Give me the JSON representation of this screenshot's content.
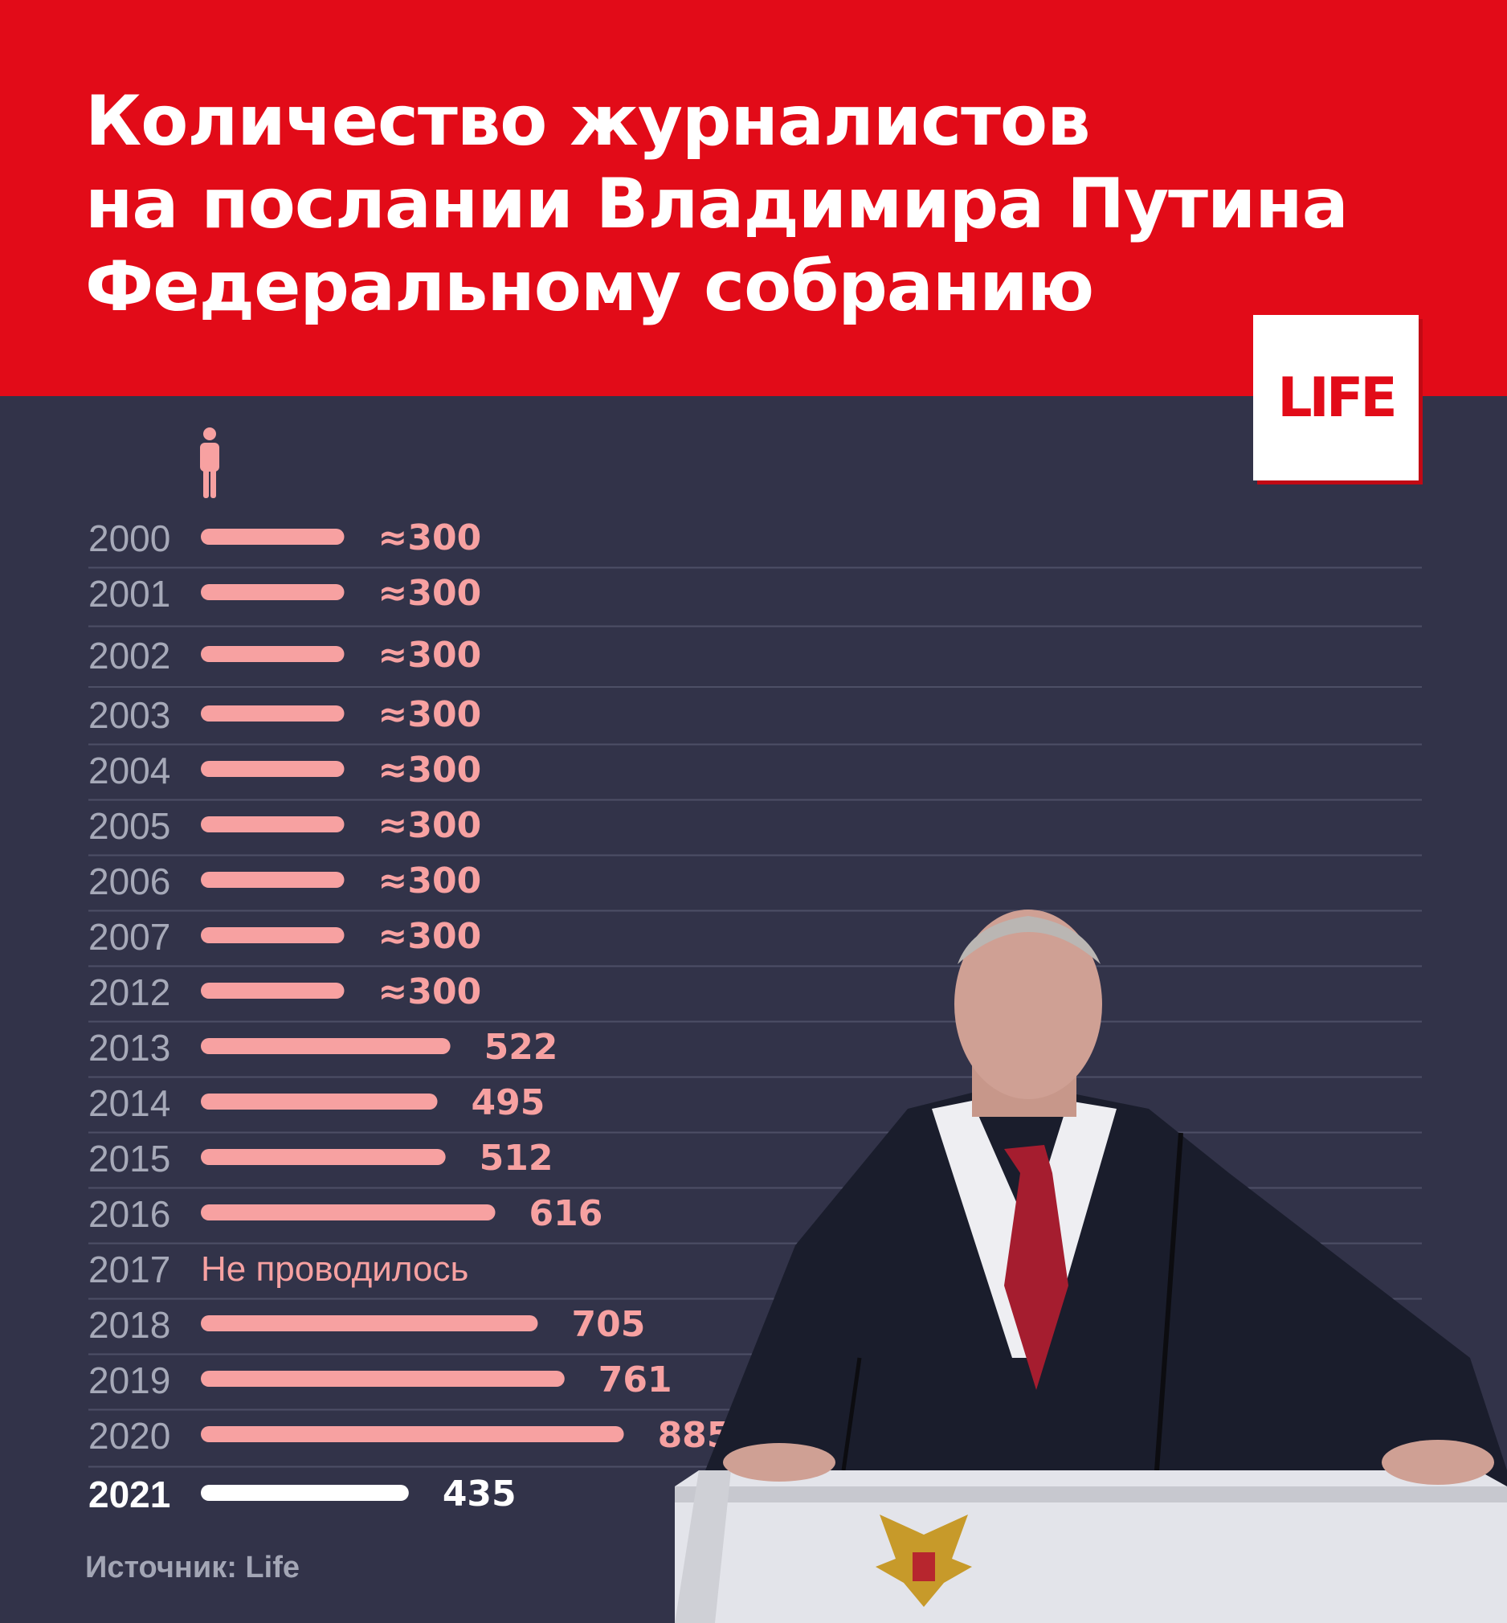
{
  "header": {
    "title_lines": [
      "Количество журналистов",
      "на послании Владимира Путина",
      "Федеральному собранию"
    ]
  },
  "logo": {
    "text": "LIFE"
  },
  "source": "Источник: Life",
  "colors": {
    "header_bg": "#e20b18",
    "background": "#323349",
    "bar": "#f7a1a1",
    "bar_highlight": "#ffffff",
    "year_label": "#a6a9b8",
    "separator": "#4d4f66"
  },
  "icons": {
    "legend": "person-icon"
  },
  "chart_data": {
    "type": "bar",
    "orientation": "horizontal",
    "title": "Количество журналистов на послании Владимира Путина Федеральному собранию",
    "categories": [
      "2000",
      "2001",
      "2002",
      "2003",
      "2004",
      "2005",
      "2006",
      "2007",
      "2012",
      "2013",
      "2014",
      "2015",
      "2016",
      "2017",
      "2018",
      "2019",
      "2020",
      "2021"
    ],
    "values": [
      300,
      300,
      300,
      300,
      300,
      300,
      300,
      300,
      300,
      522,
      495,
      512,
      616,
      null,
      705,
      761,
      885,
      435
    ],
    "labels": [
      "≈300",
      "≈300",
      "≈300",
      "≈300",
      "≈300",
      "≈300",
      "≈300",
      "≈300",
      "≈300",
      "522",
      "495",
      "512",
      "616",
      "Не проводилось",
      "705",
      "761",
      "885",
      "435"
    ],
    "highlight": "2021"
  }
}
